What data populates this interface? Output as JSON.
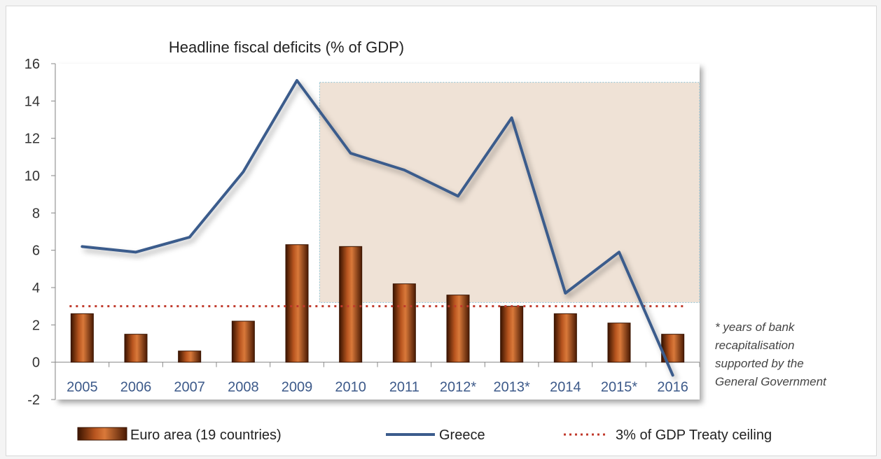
{
  "chart_data": {
    "type": "bar",
    "title": "Headline fiscal deficits (% of GDP)",
    "xlabel": "",
    "ylabel": "",
    "ylim": [
      -2,
      16
    ],
    "yticks": [
      "16",
      "14",
      "12",
      "10",
      "8",
      "6",
      "4",
      "2",
      "0",
      "-2"
    ],
    "categories": [
      "2005",
      "2006",
      "2007",
      "2008",
      "2009",
      "2010",
      "2011",
      "2012*",
      "2013*",
      "2014",
      "2015*",
      "2016"
    ],
    "series": [
      {
        "name": "Euro area (19 countries)",
        "type": "bar",
        "color": "#8b3a0f",
        "values": [
          2.6,
          1.5,
          0.6,
          2.2,
          6.3,
          6.2,
          4.2,
          3.6,
          3.0,
          2.6,
          2.1,
          1.5
        ]
      },
      {
        "name": "Greece",
        "type": "line",
        "color": "#3b5b8c",
        "values": [
          6.2,
          5.9,
          6.7,
          10.2,
          15.1,
          11.2,
          10.3,
          8.9,
          13.1,
          3.7,
          5.9,
          -0.7
        ]
      },
      {
        "name": "3% of GDP Treaty ceiling",
        "type": "reference-line",
        "color": "#c0392b",
        "style": "dotted",
        "values": [
          3,
          3,
          3,
          3,
          3,
          3,
          3,
          3,
          3,
          3,
          3,
          3
        ]
      }
    ],
    "highlight": {
      "from_category": "2010",
      "to_category": "2016",
      "y_range": [
        3.2,
        15
      ],
      "color": "#efe2d6"
    },
    "note": [
      "* years of bank",
      "recapitalisation",
      "supported by the",
      "General Government"
    ],
    "legend_position": "bottom",
    "grid": false
  }
}
